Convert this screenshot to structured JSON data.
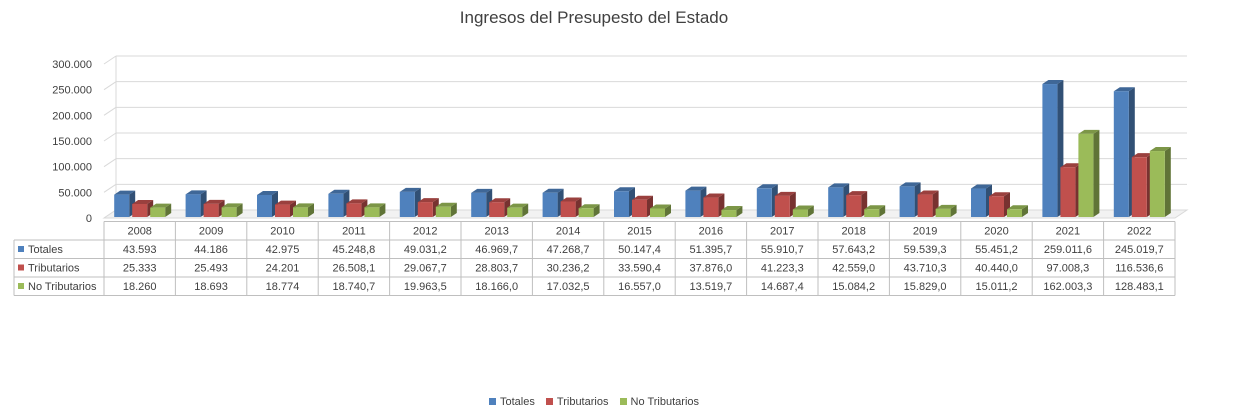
{
  "chart_data": {
    "type": "bar",
    "title": "Ingresos del Presupesto del Estado",
    "categories": [
      "2008",
      "2009",
      "2010",
      "2011",
      "2012",
      "2013",
      "2014",
      "2015",
      "2016",
      "2017",
      "2018",
      "2019",
      "2020",
      "2021",
      "2022"
    ],
    "ylim": [
      0,
      300000
    ],
    "yticks": [
      "0",
      "50.000",
      "100.000",
      "150.000",
      "200.000",
      "250.000",
      "300.000"
    ],
    "grid": true,
    "legend_position": "bottom",
    "series": [
      {
        "name": "Totales",
        "color": "#4F81BD",
        "values": [
          43593,
          44186,
          42975,
          45248.8,
          49031.2,
          46969.7,
          47268.7,
          50147.4,
          51395.7,
          55910.7,
          57643.2,
          59539.3,
          55451.2,
          259011.6,
          245019.7
        ],
        "labels": [
          "43.593",
          "44.186",
          "42.975",
          "45.248,8",
          "49.031,2",
          "46.969,7",
          "47.268,7",
          "50.147,4",
          "51.395,7",
          "55.910,7",
          "57.643,2",
          "59.539,3",
          "55.451,2",
          "259.011,6",
          "245.019,7"
        ]
      },
      {
        "name": "Tributarios",
        "color": "#C0504D",
        "values": [
          25333,
          25493,
          24201,
          26508.1,
          29067.7,
          28803.7,
          30236.2,
          33590.4,
          37876.0,
          41223.3,
          42559.0,
          43710.3,
          40440.0,
          97008.3,
          116536.6
        ],
        "labels": [
          "25.333",
          "25.493",
          "24.201",
          "26.508,1",
          "29.067,7",
          "28.803,7",
          "30.236,2",
          "33.590,4",
          "37.876,0",
          "41.223,3",
          "42.559,0",
          "43.710,3",
          "40.440,0",
          "97.008,3",
          "116.536,6"
        ]
      },
      {
        "name": "No Tributarios",
        "color": "#9BBB59",
        "values": [
          18260,
          18693,
          18774,
          18740.7,
          19963.5,
          18166.0,
          17032.5,
          16557.0,
          13519.7,
          14687.4,
          15084.2,
          15829.0,
          15011.2,
          162003.3,
          128483.1
        ],
        "labels": [
          "18.260",
          "18.693",
          "18.774",
          "18.740,7",
          "19.963,5",
          "18.166,0",
          "17.032,5",
          "16.557,0",
          "13.519,7",
          "14.687,4",
          "15.084,2",
          "15.829,0",
          "15.011,2",
          "162.003,3",
          "128.483,1"
        ]
      }
    ]
  }
}
